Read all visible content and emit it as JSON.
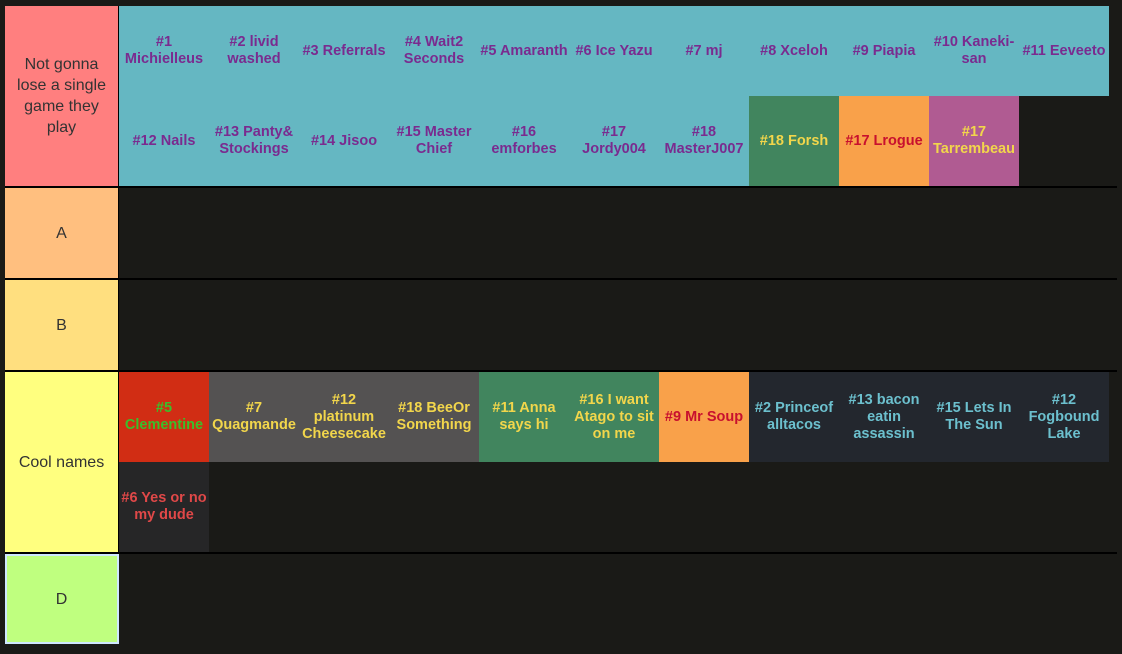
{
  "tiers": [
    {
      "label": "Not gonna lose a single game they play",
      "color": "#ff7f7f",
      "items": [
        {
          "text": "#1 Michielleus",
          "bg": "#65b7c2",
          "fg": "#7a2b8f"
        },
        {
          "text": "#2 livid washed",
          "bg": "#65b7c2",
          "fg": "#7a2b8f"
        },
        {
          "text": "#3 Referrals",
          "bg": "#65b7c2",
          "fg": "#7a2b8f"
        },
        {
          "text": "#4 Wait2 Seconds",
          "bg": "#65b7c2",
          "fg": "#7a2b8f"
        },
        {
          "text": "#5 Amaranth",
          "bg": "#65b7c2",
          "fg": "#7a2b8f"
        },
        {
          "text": "#6 Ice Yazu",
          "bg": "#65b7c2",
          "fg": "#7a2b8f"
        },
        {
          "text": "#7 mj",
          "bg": "#65b7c2",
          "fg": "#7a2b8f"
        },
        {
          "text": "#8 Xceloh",
          "bg": "#65b7c2",
          "fg": "#7a2b8f"
        },
        {
          "text": "#9 Piapia",
          "bg": "#65b7c2",
          "fg": "#7a2b8f"
        },
        {
          "text": "#10 Kaneki-san",
          "bg": "#65b7c2",
          "fg": "#7a2b8f"
        },
        {
          "text": "#11 Eeveeto",
          "bg": "#65b7c2",
          "fg": "#7a2b8f"
        },
        {
          "text": "#12 Nails",
          "bg": "#65b7c2",
          "fg": "#7a2b8f"
        },
        {
          "text": "#13 Panty& Stockings",
          "bg": "#65b7c2",
          "fg": "#7a2b8f"
        },
        {
          "text": "#14 Jisoo",
          "bg": "#65b7c2",
          "fg": "#7a2b8f"
        },
        {
          "text": "#15 Master Chief",
          "bg": "#65b7c2",
          "fg": "#7a2b8f"
        },
        {
          "text": "#16 emforbes",
          "bg": "#65b7c2",
          "fg": "#7a2b8f"
        },
        {
          "text": "#17 Jordy004",
          "bg": "#65b7c2",
          "fg": "#7a2b8f"
        },
        {
          "text": "#18 MasterJ007",
          "bg": "#65b7c2",
          "fg": "#7a2b8f"
        },
        {
          "text": "#18 Forsh",
          "bg": "#41855e",
          "fg": "#f2d64b"
        },
        {
          "text": "#17 Lrogue",
          "bg": "#f9a14a",
          "fg": "#c8102e"
        },
        {
          "text": "#17 Tarrembeau",
          "bg": "#b05b92",
          "fg": "#f2d64b"
        }
      ]
    },
    {
      "label": "A",
      "color": "#ffbf7f",
      "items": []
    },
    {
      "label": "B",
      "color": "#ffdf7f",
      "items": []
    },
    {
      "label": "Cool names",
      "color": "#ffff7f",
      "items": [
        {
          "text": "#5 Clementine",
          "bg": "#d12d14",
          "fg": "#3bbf2a"
        },
        {
          "text": "#7 Quagmande",
          "bg": "#545252",
          "fg": "#f2d64b"
        },
        {
          "text": "#12 platinum Cheesecake",
          "bg": "#545252",
          "fg": "#f2d64b"
        },
        {
          "text": "#18 BeeOr Something",
          "bg": "#545252",
          "fg": "#f2d64b"
        },
        {
          "text": "#11 Anna says hi",
          "bg": "#41855e",
          "fg": "#f2d64b"
        },
        {
          "text": "#16 I want Atago to sit on me",
          "bg": "#41855e",
          "fg": "#f2d64b"
        },
        {
          "text": "#9 Mr Soup",
          "bg": "#f9a14a",
          "fg": "#c8102e"
        },
        {
          "text": "#2 Princeof alltacos",
          "bg": "#23272e",
          "fg": "#6cc0ce"
        },
        {
          "text": "#13 bacon eatin assassin",
          "bg": "#23272e",
          "fg": "#6cc0ce"
        },
        {
          "text": "#15 Lets In The Sun",
          "bg": "#23272e",
          "fg": "#6cc0ce"
        },
        {
          "text": "#12 Fogbound Lake",
          "bg": "#23272e",
          "fg": "#6cc0ce"
        },
        {
          "text": "#6 Yes or no my dude",
          "bg": "#262627",
          "fg": "#e04848"
        }
      ]
    },
    {
      "label": "D",
      "color": "#bfff7f",
      "items": []
    }
  ]
}
